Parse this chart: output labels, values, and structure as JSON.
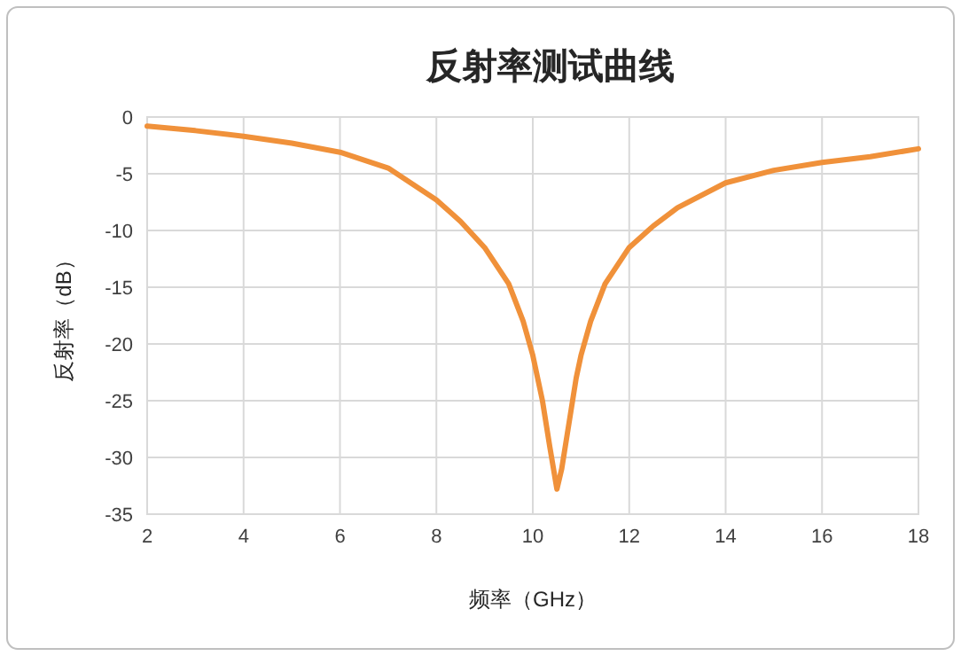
{
  "chart_data": {
    "type": "line",
    "title": "反射率测试曲线",
    "xlabel": "频率（GHz）",
    "ylabel": "反射率（dB）",
    "x": [
      2,
      3,
      4,
      5,
      6,
      7,
      8,
      8.5,
      9,
      9.5,
      9.8,
      10,
      10.2,
      10.35,
      10.5,
      10.6,
      10.75,
      10.9,
      11,
      11.2,
      11.5,
      12,
      12.5,
      13,
      14,
      15,
      16,
      17,
      18
    ],
    "series": [
      {
        "color": "#f0913a",
        "values": [
          -0.8,
          -1.2,
          -1.7,
          -2.3,
          -3.1,
          -4.5,
          -7.3,
          -9.2,
          -11.5,
          -14.7,
          -18,
          -21,
          -25,
          -29,
          -32.8,
          -31,
          -27,
          -23,
          -21,
          -18,
          -14.7,
          -11.5,
          -9.6,
          -8,
          -5.8,
          -4.7,
          -4,
          -3.5,
          -2.8
        ]
      }
    ],
    "xlim": [
      2,
      18
    ],
    "xticks": [
      2,
      4,
      6,
      8,
      10,
      12,
      14,
      16,
      18
    ],
    "ylim": [
      -35,
      0
    ],
    "yticks": [
      -35,
      -30,
      -25,
      -20,
      -15,
      -10,
      -5,
      0
    ],
    "grid": true,
    "marker": "none",
    "line_style": "solid"
  }
}
